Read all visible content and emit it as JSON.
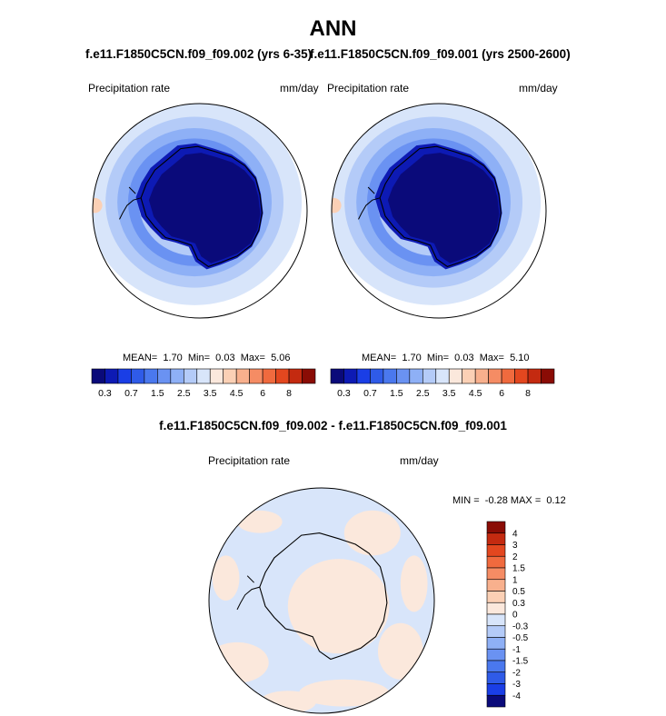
{
  "title": "ANN",
  "left_panel": {
    "case_title": "f.e11.F1850C5CN.f09_f09.002 (yrs 6-35)",
    "var_label": "Precipitation rate",
    "units": "mm/day",
    "stats": {
      "mean_label": "MEAN=",
      "mean": "1.70",
      "min_label": "Min=",
      "min": "0.03",
      "max_label": "Max=",
      "max": "5.06"
    }
  },
  "right_panel": {
    "case_title": "f.e11.F1850C5CN.f09_f09.001 (yrs 2500-2600)",
    "var_label": "Precipitation rate",
    "units": "mm/day",
    "stats": {
      "mean_label": "MEAN=",
      "mean": "1.70",
      "min_label": "Min=",
      "min": "0.03",
      "max_label": "Max=",
      "max": "5.10"
    }
  },
  "diff_panel": {
    "title": "f.e11.F1850C5CN.f09_f09.002 - f.e11.F1850C5CN.f09_f09.001",
    "var_label": "Precipitation rate",
    "units": "mm/day",
    "minmax": {
      "min_label": "MIN =",
      "min": "-0.28",
      "max_label": "MAX =",
      "max": "0.12"
    }
  },
  "chart_data": [
    {
      "type": "map",
      "projection": "south-polar-stereographic",
      "title": "f.e11.F1850C5CN.f09_f09.002 (yrs 6-35)",
      "variable": "Precipitation rate",
      "units": "mm/day",
      "stats": {
        "mean": 1.7,
        "min": 0.03,
        "max": 5.06
      },
      "colorbar": {
        "orientation": "horizontal",
        "levels": [
          0.2,
          0.3,
          0.5,
          0.7,
          1,
          1.5,
          2,
          2.5,
          3,
          3.5,
          4,
          4.5,
          5,
          6,
          7,
          8
        ],
        "tick_labels": [
          "0.3",
          "0.7",
          "1.5",
          "2.5",
          "3.5",
          "4.5",
          "6",
          "8"
        ],
        "colors": [
          "#0a0a7a",
          "#0d1ab4",
          "#1a3ee6",
          "#2f5be8",
          "#4a78ee",
          "#6a92f2",
          "#8eb0f6",
          "#b4cbf8",
          "#d8e5fa",
          "#fbe8dc",
          "#fbd0b5",
          "#f8b08d",
          "#f58c64",
          "#f06a3e",
          "#e3471f",
          "#c42a10",
          "#8a0c05"
        ]
      }
    },
    {
      "type": "map",
      "projection": "south-polar-stereographic",
      "title": "f.e11.F1850C5CN.f09_f09.001 (yrs 2500-2600)",
      "variable": "Precipitation rate",
      "units": "mm/day",
      "stats": {
        "mean": 1.7,
        "min": 0.03,
        "max": 5.1
      },
      "colorbar": {
        "orientation": "horizontal",
        "levels": [
          0.2,
          0.3,
          0.5,
          0.7,
          1,
          1.5,
          2,
          2.5,
          3,
          3.5,
          4,
          4.5,
          5,
          6,
          7,
          8
        ],
        "tick_labels": [
          "0.3",
          "0.7",
          "1.5",
          "2.5",
          "3.5",
          "4.5",
          "6",
          "8"
        ],
        "colors": [
          "#0a0a7a",
          "#0d1ab4",
          "#1a3ee6",
          "#2f5be8",
          "#4a78ee",
          "#6a92f2",
          "#8eb0f6",
          "#b4cbf8",
          "#d8e5fa",
          "#fbe8dc",
          "#fbd0b5",
          "#f8b08d",
          "#f58c64",
          "#f06a3e",
          "#e3471f",
          "#c42a10",
          "#8a0c05"
        ]
      }
    },
    {
      "type": "map",
      "projection": "south-polar-stereographic",
      "title": "f.e11.F1850C5CN.f09_f09.002 - f.e11.F1850C5CN.f09_f09.001",
      "variable": "Precipitation rate",
      "units": "mm/day",
      "stats": {
        "min": -0.28,
        "max": 0.12
      },
      "colorbar": {
        "orientation": "vertical",
        "tick_labels": [
          "4",
          "3",
          "2",
          "1.5",
          "1",
          "0.5",
          "0.3",
          "0",
          "-0.3",
          "-0.5",
          "-1",
          "-1.5",
          "-2",
          "-3",
          "-4"
        ],
        "colors": [
          "#8a0c05",
          "#c42a10",
          "#e3471f",
          "#f06a3e",
          "#f58c64",
          "#f8b08d",
          "#fbd0b5",
          "#fbe8dc",
          "#d8e5fa",
          "#b4cbf8",
          "#8eb0f6",
          "#6a92f2",
          "#4a78ee",
          "#2f5be8",
          "#1a3ee6",
          "#0a0a7a"
        ]
      }
    }
  ]
}
